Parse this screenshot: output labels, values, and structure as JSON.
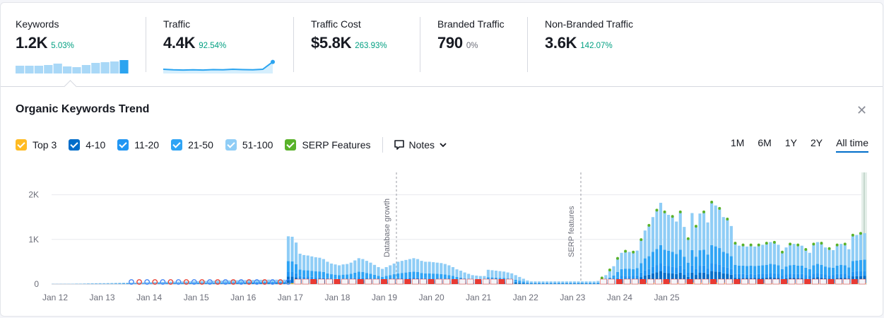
{
  "metrics": [
    {
      "label": "Keywords",
      "value": "1.2K",
      "delta": "5.03%"
    },
    {
      "label": "Traffic",
      "value": "4.4K",
      "delta": "92.54%"
    },
    {
      "label": "Traffic Cost",
      "value": "$5.8K",
      "delta": "263.93%"
    },
    {
      "label": "Branded Traffic",
      "value": "790",
      "delta": "0%"
    },
    {
      "label": "Non-Branded Traffic",
      "value": "3.6K",
      "delta": "142.07%"
    }
  ],
  "sparks": {
    "keywords": [
      0.55,
      0.55,
      0.55,
      0.6,
      0.7,
      0.5,
      0.45,
      0.6,
      0.75,
      0.8,
      0.85,
      0.95
    ],
    "traffic": [
      0.25,
      0.2,
      0.18,
      0.2,
      0.18,
      0.22,
      0.2,
      0.25,
      0.22,
      0.2,
      0.25,
      0.9
    ]
  },
  "chart_title": "Organic Keywords Trend",
  "legend": [
    {
      "label": "Top 3",
      "color": "#ffbb22"
    },
    {
      "label": "4-10",
      "color": "#006dca"
    },
    {
      "label": "11-20",
      "color": "#2196f3"
    },
    {
      "label": "21-50",
      "color": "#2fa4f5"
    },
    {
      "label": "51-100",
      "color": "#8fcdf6"
    },
    {
      "label": "SERP Features",
      "color": "#59b22a"
    }
  ],
  "notes_label": "Notes",
  "ranges": [
    "1M",
    "6M",
    "1Y",
    "2Y",
    "All time"
  ],
  "active_range": "All time",
  "colors": {
    "accent": "#006dca",
    "positive": "#009f81",
    "serp_red": "#e93a33"
  },
  "chart_data": {
    "type": "bar",
    "stacked": true,
    "ylim": [
      0,
      2500
    ],
    "yticks": [
      {
        "value": 0,
        "label": "0"
      },
      {
        "value": 1000,
        "label": "1K"
      },
      {
        "value": 2000,
        "label": "2K"
      }
    ],
    "xticks": [
      "Jan 12",
      "Jan 13",
      "Jan 14",
      "Jan 15",
      "Jan 16",
      "Jan 17",
      "Jan 18",
      "Jan 19",
      "Jan 20",
      "Jan 21",
      "Jan 22",
      "Jan 23",
      "Jan 24",
      "Jan 25"
    ],
    "x_start": 2012,
    "months_per_bar": 1,
    "annotations": [
      {
        "label": "Database growth",
        "year": 2019.33
      },
      {
        "label": "SERP features",
        "year": 2023.25
      }
    ],
    "totals": [
      5,
      5,
      6,
      6,
      7,
      8,
      10,
      10,
      12,
      14,
      16,
      18,
      20,
      20,
      22,
      24,
      26,
      28,
      30,
      32,
      34,
      36,
      38,
      40,
      42,
      44,
      46,
      48,
      50,
      52,
      54,
      55,
      56,
      58,
      60,
      62,
      64,
      66,
      68,
      70,
      72,
      74,
      76,
      78,
      80,
      82,
      84,
      85,
      86,
      88,
      90,
      92,
      94,
      96,
      98,
      100,
      100,
      100,
      100,
      100,
      1070,
      1060,
      930,
      680,
      650,
      640,
      620,
      600,
      590,
      560,
      500,
      460,
      440,
      420,
      440,
      450,
      480,
      530,
      580,
      560,
      520,
      480,
      430,
      380,
      340,
      380,
      420,
      460,
      500,
      520,
      540,
      560,
      580,
      560,
      520,
      500,
      500,
      490,
      480,
      470,
      450,
      420,
      380,
      330,
      300,
      260,
      230,
      200,
      190,
      180,
      180,
      320,
      310,
      300,
      290,
      280,
      260,
      240,
      200,
      160,
      120,
      80,
      60,
      60,
      60,
      60,
      60,
      60,
      60,
      60,
      60,
      60,
      60,
      60,
      60,
      60,
      60,
      60,
      60,
      70,
      120,
      200,
      300,
      400,
      560,
      700,
      720,
      720,
      700,
      750,
      980,
      1200,
      1300,
      1500,
      1640,
      1820,
      1600,
      1550,
      1500,
      1400,
      1600,
      1280,
      1000,
      1590,
      1280,
      1580,
      1600,
      1380,
      1820,
      1760,
      1680,
      1500,
      1440,
      1300,
      900,
      860,
      860,
      840,
      860,
      840,
      860,
      880,
      900,
      940,
      920,
      880,
      700,
      820,
      880,
      900,
      860,
      860,
      760,
      700,
      880,
      940,
      900,
      820,
      780,
      760,
      860,
      900,
      880,
      780,
      1080,
      1100,
      1120,
      1140
    ],
    "top3_share": 0.02,
    "r4_10_share": 0.14,
    "r11_20_share": 0.1,
    "r21_50_share": 0.22,
    "r51_100_share": 0.52,
    "serp_from_index": 140
  }
}
